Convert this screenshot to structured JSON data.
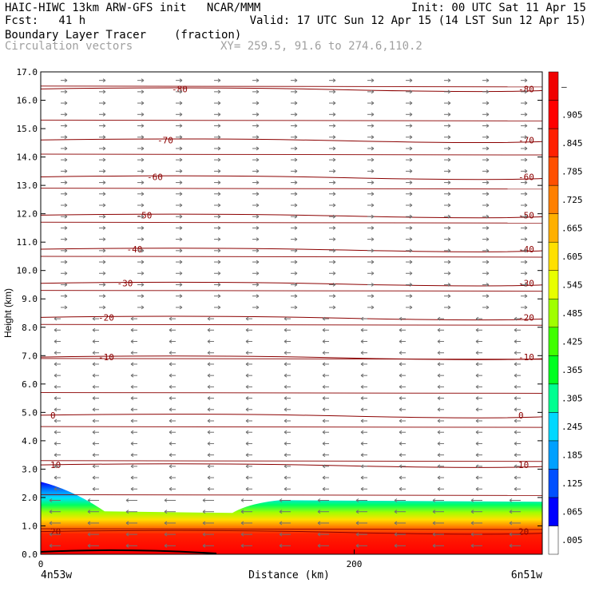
{
  "header": {
    "line1_left": "HAIC-HIWC 13km ARW-GFS init   NCAR/MMM",
    "line1_right": "Init: 00 UTC Sat 11 Apr 15",
    "line2_left": "Fcst:   41 h",
    "line2_right": "Valid: 17 UTC Sun 12 Apr 15 (14 LST Sun 12 Apr 15)",
    "field_name": "Boundary Layer Tracer",
    "field_units": "(fraction)",
    "vector_label": "Circulation vectors",
    "xy_label": "XY= 259.5, 91.6 to 274.6,110.2"
  },
  "chart_data": {
    "type": "heatmap",
    "ylabel": "Height (km)",
    "xlabel": "Distance (km)",
    "ylim": [
      0,
      17
    ],
    "xlim": [
      0,
      320
    ],
    "y_ticks": [
      "0.0",
      "1.0",
      "2.0",
      "3.0",
      "4.0",
      "5.0",
      "6.0",
      "7.0",
      "8.0",
      "9.0",
      "10.0",
      "11.0",
      "12.0",
      "13.0",
      "14.0",
      "15.0",
      "16.0",
      "17.0"
    ],
    "x_ticks": [
      {
        "value": 0,
        "label": "0"
      },
      {
        "value": 200,
        "label": "200"
      }
    ],
    "x_left_label": "4n53w",
    "x_right_label": "6n51w",
    "colorbar_labels": [
      ".005",
      ".065",
      ".125",
      ".185",
      ".245",
      ".305",
      ".365",
      ".425",
      ".485",
      ".545",
      ".605",
      ".665",
      ".725",
      ".785",
      ".845",
      ".905",
      "–"
    ],
    "colorbar_colors": [
      "#ffffff",
      "#0000ff",
      "#0050ff",
      "#00a0ff",
      "#00d8ff",
      "#00ff90",
      "#00ff20",
      "#40ff00",
      "#a0ff00",
      "#e8ff00",
      "#ffe000",
      "#ffb000",
      "#ff8000",
      "#ff5000",
      "#ff2000",
      "#ff0000",
      "#f00000"
    ],
    "temperature_contours": [
      {
        "label": "20",
        "height": 0.8
      },
      {
        "label": "10",
        "height": 3.15
      },
      {
        "label": "0",
        "height": 4.9
      },
      {
        "label": "-10",
        "height": 6.95
      },
      {
        "label": "-20",
        "height": 8.35
      },
      {
        "label": "-30",
        "height": 9.55
      },
      {
        "label": "-40",
        "height": 10.75
      },
      {
        "label": "-50",
        "height": 11.95
      },
      {
        "label": "-60",
        "height": 13.3
      },
      {
        "label": "-70",
        "height": 14.6
      },
      {
        "label": "-80",
        "height": 16.4
      }
    ],
    "tracer_top_km": 1.85,
    "colors": {
      "contour": "#8b0000",
      "vector": "#707070"
    }
  }
}
